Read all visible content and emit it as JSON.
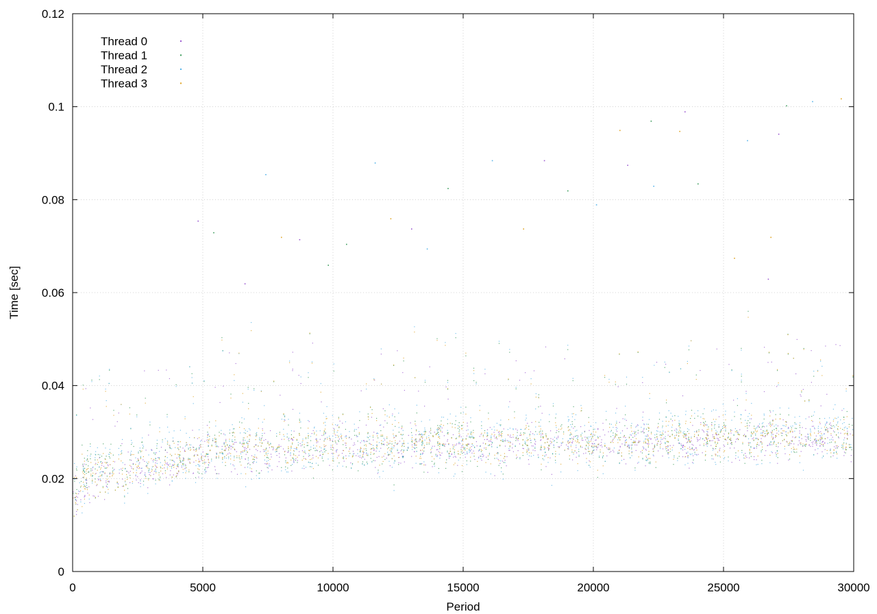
{
  "chart_data": {
    "type": "scatter",
    "title": "",
    "xlabel": "Period",
    "ylabel": "Time [sec]",
    "xlim": [
      0,
      30000
    ],
    "ylim": [
      0,
      0.12
    ],
    "xticks": [
      0,
      5000,
      10000,
      15000,
      20000,
      25000,
      30000
    ],
    "xtick_labels": [
      "0",
      "5000",
      "10000",
      "15000",
      "20000",
      "25000",
      "30000"
    ],
    "yticks": [
      0,
      0.02,
      0.04,
      0.06,
      0.08,
      0.1,
      0.12
    ],
    "ytick_labels": [
      "0",
      "0.02",
      "0.04",
      "0.06",
      "0.08",
      "0.1",
      "0.12"
    ],
    "grid": true,
    "legend_position": "top-left",
    "series": [
      {
        "name": "Thread 0",
        "color": "#9b59d0",
        "trend": [
          [
            0,
            0.016
          ],
          [
            500,
            0.02
          ],
          [
            1000,
            0.021
          ],
          [
            2000,
            0.022
          ],
          [
            3500,
            0.023
          ],
          [
            5000,
            0.025
          ],
          [
            7500,
            0.026
          ],
          [
            10000,
            0.027
          ],
          [
            15000,
            0.027
          ],
          [
            20000,
            0.028
          ],
          [
            25000,
            0.028
          ],
          [
            30000,
            0.029
          ]
        ],
        "spread": 0.004
      },
      {
        "name": "Thread 1",
        "color": "#3a9b5a",
        "trend": [
          [
            0,
            0.017
          ],
          [
            500,
            0.021
          ],
          [
            1000,
            0.022
          ],
          [
            2000,
            0.023
          ],
          [
            3500,
            0.024
          ],
          [
            5000,
            0.026
          ],
          [
            7500,
            0.027
          ],
          [
            10000,
            0.027
          ],
          [
            15000,
            0.028
          ],
          [
            20000,
            0.028
          ],
          [
            25000,
            0.029
          ],
          [
            30000,
            0.029
          ]
        ],
        "spread": 0.005
      },
      {
        "name": "Thread 2",
        "color": "#56b4e9",
        "trend": [
          [
            0,
            0.017
          ],
          [
            500,
            0.021
          ],
          [
            1000,
            0.022
          ],
          [
            2000,
            0.023
          ],
          [
            3500,
            0.024
          ],
          [
            5000,
            0.026
          ],
          [
            7500,
            0.027
          ],
          [
            10000,
            0.028
          ],
          [
            15000,
            0.028
          ],
          [
            20000,
            0.029
          ],
          [
            25000,
            0.029
          ],
          [
            30000,
            0.03
          ]
        ],
        "spread": 0.006
      },
      {
        "name": "Thread 3",
        "color": "#e0a526",
        "trend": [
          [
            0,
            0.016
          ],
          [
            500,
            0.02
          ],
          [
            1000,
            0.021
          ],
          [
            2000,
            0.022
          ],
          [
            3500,
            0.023
          ],
          [
            5000,
            0.026
          ],
          [
            7500,
            0.027
          ],
          [
            10000,
            0.028
          ],
          [
            15000,
            0.028
          ],
          [
            20000,
            0.028
          ],
          [
            25000,
            0.029
          ],
          [
            30000,
            0.029
          ]
        ],
        "spread": 0.004
      }
    ],
    "outliers": [
      {
        "x": 4800,
        "y": 0.0755
      },
      {
        "x": 5400,
        "y": 0.073
      },
      {
        "x": 7400,
        "y": 0.0855
      },
      {
        "x": 8000,
        "y": 0.072
      },
      {
        "x": 8700,
        "y": 0.0715
      },
      {
        "x": 10500,
        "y": 0.0705
      },
      {
        "x": 11600,
        "y": 0.088
      },
      {
        "x": 12200,
        "y": 0.076
      },
      {
        "x": 13000,
        "y": 0.0738
      },
      {
        "x": 14400,
        "y": 0.0825
      },
      {
        "x": 16100,
        "y": 0.0885
      },
      {
        "x": 17300,
        "y": 0.0738
      },
      {
        "x": 18100,
        "y": 0.0885
      },
      {
        "x": 19000,
        "y": 0.082
      },
      {
        "x": 20100,
        "y": 0.079
      },
      {
        "x": 21000,
        "y": 0.095
      },
      {
        "x": 21300,
        "y": 0.0875
      },
      {
        "x": 22200,
        "y": 0.097
      },
      {
        "x": 22300,
        "y": 0.083
      },
      {
        "x": 23300,
        "y": 0.0948
      },
      {
        "x": 23500,
        "y": 0.099
      },
      {
        "x": 24000,
        "y": 0.0835
      },
      {
        "x": 25900,
        "y": 0.0928
      },
      {
        "x": 26800,
        "y": 0.072
      },
      {
        "x": 27100,
        "y": 0.0942
      },
      {
        "x": 27400,
        "y": 0.1003
      },
      {
        "x": 28400,
        "y": 0.1012
      },
      {
        "x": 29500,
        "y": 0.1018
      },
      {
        "x": 6600,
        "y": 0.062
      },
      {
        "x": 9800,
        "y": 0.066
      },
      {
        "x": 13600,
        "y": 0.0695
      },
      {
        "x": 25400,
        "y": 0.0675
      },
      {
        "x": 26700,
        "y": 0.063
      }
    ]
  }
}
